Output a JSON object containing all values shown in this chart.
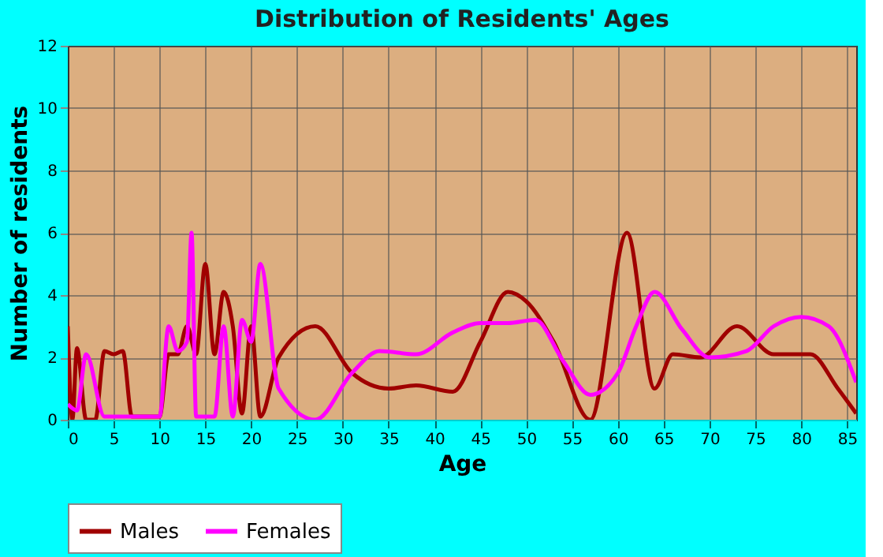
{
  "chart_data": {
    "type": "line",
    "title": "Distribution of Residents' Ages",
    "xlabel": "Age",
    "ylabel": "Number of residents",
    "xlim": [
      0,
      86
    ],
    "xticks": [
      0,
      5,
      10,
      15,
      20,
      25,
      30,
      35,
      40,
      45,
      50,
      55,
      60,
      65,
      70,
      75,
      80,
      85
    ],
    "ylim": [
      0,
      12
    ],
    "yticks": [
      0,
      2,
      4,
      6,
      8,
      10,
      12
    ],
    "grid": true,
    "legend": "bottom",
    "marker": "none",
    "line_style": "solid",
    "series": [
      {
        "name": "Males",
        "color": "#a00000",
        "x": [
          0,
          0.5,
          1,
          2,
          3,
          4,
          5,
          6,
          7,
          8,
          9,
          10,
          11,
          12,
          13,
          14,
          15,
          16,
          17,
          18,
          19,
          20,
          21,
          23,
          27,
          31,
          35,
          38,
          42,
          45,
          48,
          50,
          53,
          57,
          61,
          64,
          66,
          69,
          73,
          77,
          81,
          84,
          86
        ],
        "values": [
          3,
          0,
          2.3,
          0,
          0,
          2.2,
          2.1,
          2.2,
          0.1,
          0.1,
          0.1,
          0.1,
          2.1,
          2.1,
          3,
          2.1,
          5,
          2.1,
          4.1,
          3,
          0.2,
          3,
          0.1,
          2,
          3,
          1.5,
          1,
          1.1,
          0.9,
          2.5,
          4.1,
          3.8,
          2.5,
          0,
          6,
          1,
          2.1,
          2,
          3,
          2.1,
          2.1,
          1,
          0.2
        ]
      },
      {
        "name": "Females",
        "color": "#ff00ff",
        "x": [
          0,
          1,
          2,
          4,
          6,
          10,
          11,
          12,
          13,
          13.5,
          14,
          16,
          17,
          18,
          19,
          20,
          21,
          23,
          27,
          31,
          34,
          38,
          42,
          45,
          48,
          51,
          54,
          57,
          60,
          62,
          64,
          67,
          70,
          74,
          77,
          80,
          83,
          86
        ],
        "values": [
          0.5,
          0.3,
          2.1,
          0.1,
          0.1,
          0.1,
          3,
          2.2,
          2.5,
          6,
          0.1,
          0.1,
          3,
          0.1,
          3.2,
          2.5,
          5,
          1,
          0,
          1.5,
          2.2,
          2.1,
          2.8,
          3.1,
          3.1,
          3.2,
          1.9,
          0.8,
          1.5,
          3,
          4.1,
          2.9,
          2,
          2.2,
          3,
          3.3,
          3,
          1.2
        ]
      }
    ]
  }
}
